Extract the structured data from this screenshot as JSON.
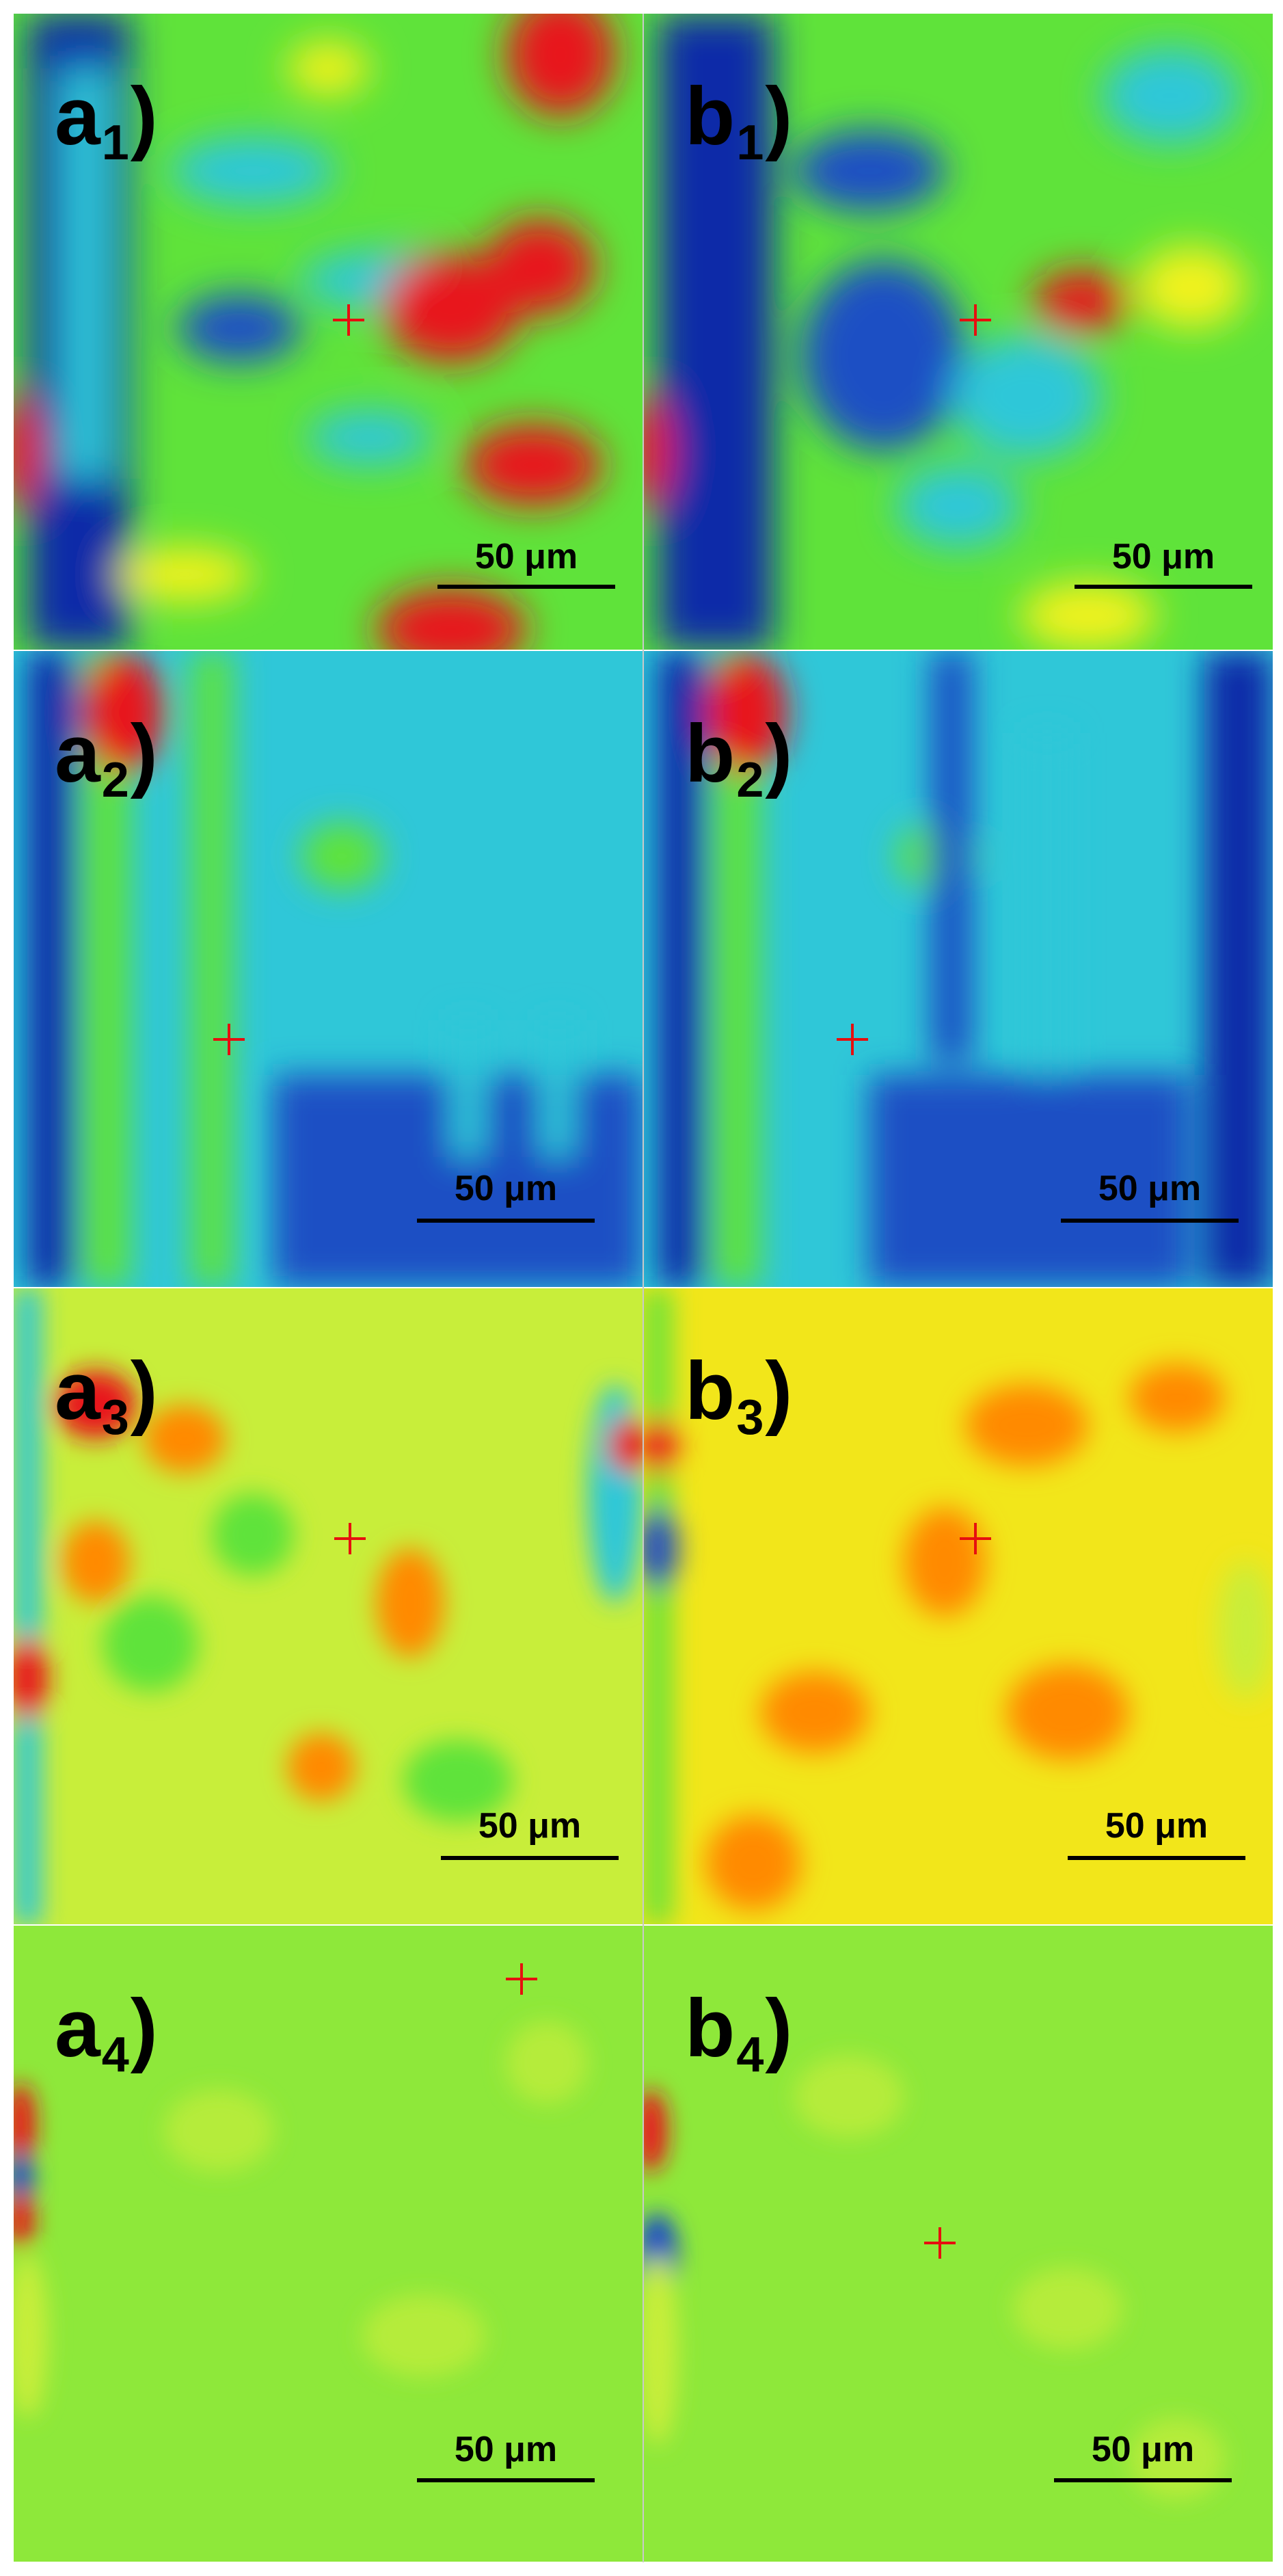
{
  "figure": {
    "panels": [
      {
        "id": "a1",
        "letter": "a",
        "index": "1",
        "scalebar": "50 μm",
        "palette": "hot-blue",
        "crosshair": "yes"
      },
      {
        "id": "b1",
        "letter": "b",
        "index": "1",
        "scalebar": "50 μm",
        "palette": "hot-blue",
        "crosshair": "yes"
      },
      {
        "id": "a2",
        "letter": "a",
        "index": "2",
        "scalebar": "50 μm",
        "palette": "cyan-blue",
        "crosshair": "yes"
      },
      {
        "id": "b2",
        "letter": "b",
        "index": "2",
        "scalebar": "50 μm",
        "palette": "cyan-blue",
        "crosshair": "yes"
      },
      {
        "id": "a3",
        "letter": "a",
        "index": "3",
        "scalebar": "50 μm",
        "palette": "yellow-orange",
        "crosshair": "yes"
      },
      {
        "id": "b3",
        "letter": "b",
        "index": "3",
        "scalebar": "50 μm",
        "palette": "yellow-orange",
        "crosshair": "yes"
      },
      {
        "id": "a4",
        "letter": "a",
        "index": "4",
        "scalebar": "50 μm",
        "palette": "green-flat",
        "crosshair": "yes"
      },
      {
        "id": "b4",
        "letter": "b",
        "index": "4",
        "scalebar": "50 μm",
        "palette": "green-flat",
        "crosshair": "yes"
      }
    ],
    "colors": {
      "red": "#e8141a",
      "orange": "#ff8a00",
      "yellow": "#f2f21a",
      "green": "#5fe33a",
      "cyan": "#2fc7d8",
      "blue": "#1a4fc4",
      "darkblue": "#0b2aa8",
      "crosshair": "#e60f0f"
    }
  }
}
